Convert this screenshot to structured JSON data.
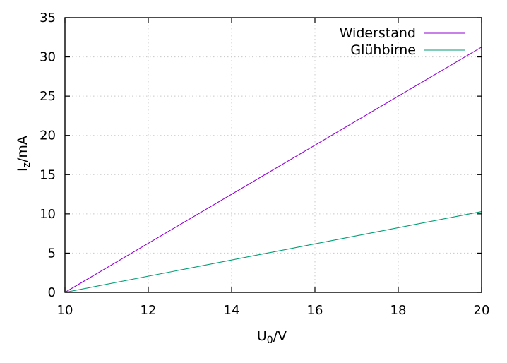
{
  "chart_data": {
    "type": "line",
    "xlabel": {
      "base": "U",
      "sub": "0",
      "rest": "/V"
    },
    "ylabel": {
      "base": "I",
      "sub": "z",
      "rest": "/mA"
    },
    "xlim": [
      10,
      20
    ],
    "ylim": [
      0,
      35
    ],
    "xticks": [
      10,
      12,
      14,
      16,
      18,
      20
    ],
    "yticks": [
      0,
      5,
      10,
      15,
      20,
      25,
      30,
      35
    ],
    "grid": true,
    "legend_position": "top-right",
    "series": [
      {
        "name": "Widerstand",
        "color": "#9400d3",
        "x": [
          10,
          20
        ],
        "y": [
          0,
          31.25
        ]
      },
      {
        "name": "Glühbirne",
        "color": "#009e73",
        "x": [
          10,
          20
        ],
        "y": [
          0,
          10.3
        ]
      }
    ]
  }
}
